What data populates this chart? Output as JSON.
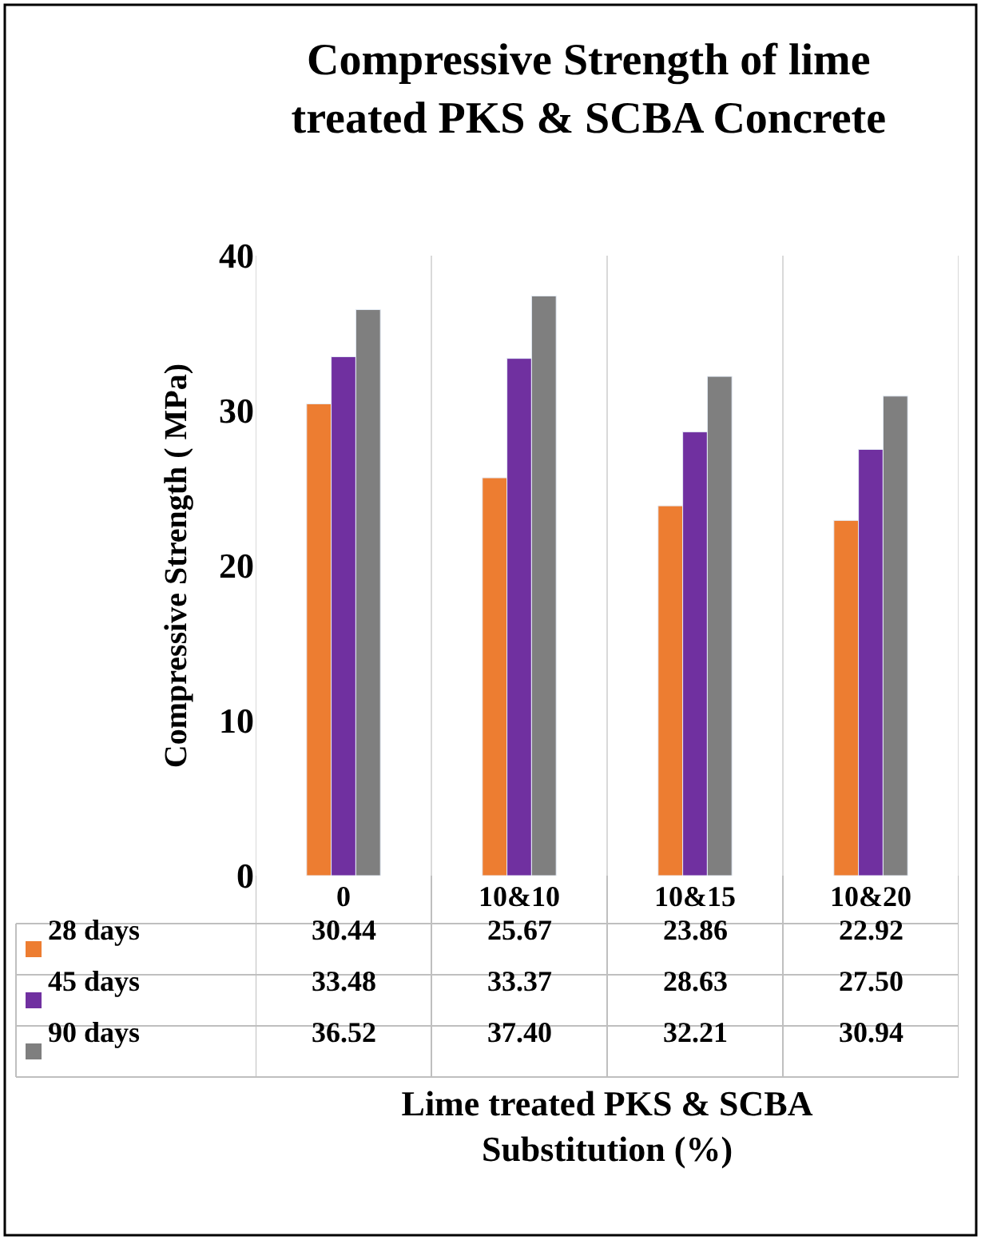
{
  "chart_data": {
    "type": "bar",
    "title": "Compressive Strength of lime treated PKS & SCBA Concrete",
    "xlabel": "Lime treated PKS & SCBA Substitution (%)",
    "ylabel": "Compressive Strength ( MPa)",
    "categories": [
      "0",
      "10&10",
      "10&15",
      "10&20"
    ],
    "series": [
      {
        "name": "28 days",
        "color": "#ed7d31",
        "values": [
          30.44,
          25.67,
          23.86,
          22.92
        ],
        "value_labels": [
          "30.44",
          "25.67",
          "23.86",
          "22.92"
        ]
      },
      {
        "name": "45 days",
        "color": "#7030a0",
        "values": [
          33.48,
          33.37,
          28.63,
          27.5
        ],
        "value_labels": [
          "33.48",
          "33.37",
          "28.63",
          "27.50"
        ]
      },
      {
        "name": "90 days",
        "color": "#7f7f7f",
        "values": [
          36.52,
          37.4,
          32.21,
          30.94
        ],
        "value_labels": [
          "36.52",
          "37.40",
          "32.21",
          "30.94"
        ]
      }
    ],
    "ylim": [
      0,
      40
    ],
    "yticks": [
      0,
      10,
      20,
      30,
      40
    ],
    "grid": "x",
    "legend": "bottom"
  }
}
